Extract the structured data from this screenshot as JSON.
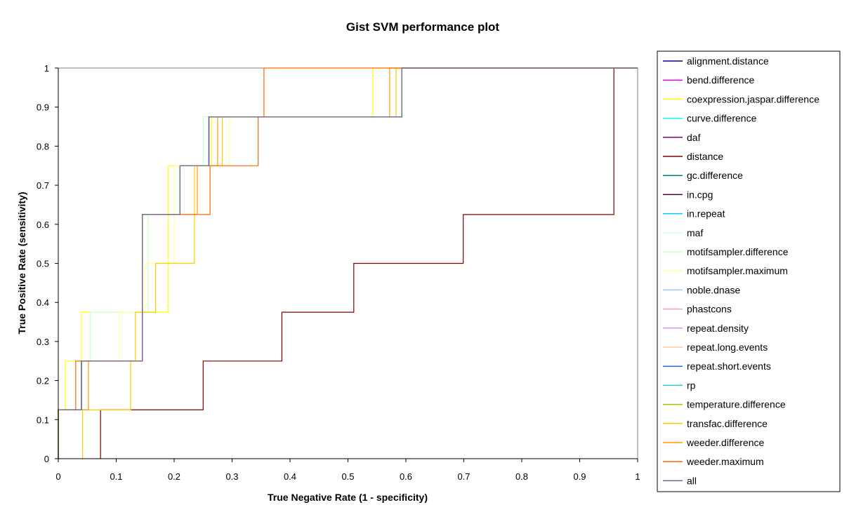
{
  "chart_data": {
    "type": "line",
    "title": "Gist SVM performance plot",
    "xlabel": "True Negative Rate (1 - specificity)",
    "ylabel": "True Positive Rate (sensitivity)",
    "xlim": [
      0,
      1
    ],
    "ylim": [
      0,
      1
    ],
    "x_ticks": [
      "0",
      "0.1",
      "0.2",
      "0.3",
      "0.4",
      "0.5",
      "0.6",
      "0.7",
      "0.8",
      "0.9",
      "1"
    ],
    "y_ticks": [
      "0",
      "0.1",
      "0.2",
      "0.3",
      "0.4",
      "0.5",
      "0.6",
      "0.7",
      "0.8",
      "0.9",
      "1"
    ],
    "grid": false,
    "legend_position": "right",
    "series": [
      {
        "name": "alignment.distance",
        "color": "#000080",
        "x": [
          0,
          0,
          0.04,
          0.04,
          0.145,
          0.145,
          0.21,
          0.21,
          0.26,
          0.26,
          0.593,
          0.593,
          1
        ],
        "y": [
          0,
          0.125,
          0.125,
          0.25,
          0.25,
          0.625,
          0.625,
          0.75,
          0.75,
          0.875,
          0.875,
          1,
          1
        ]
      },
      {
        "name": "bend.difference",
        "color": "#ff00ff",
        "x": [
          0,
          0,
          0.04,
          0.04,
          0.145,
          0.145,
          0.21,
          0.21,
          0.26,
          0.26,
          0.593,
          0.593,
          1
        ],
        "y": [
          0,
          0.125,
          0.125,
          0.25,
          0.25,
          0.625,
          0.625,
          0.75,
          0.75,
          0.875,
          0.875,
          1,
          1
        ]
      },
      {
        "name": "coexpression.jaspar.difference",
        "color": "#ffff00",
        "x": [
          0,
          0,
          0.012,
          0.012,
          0.04,
          0.04,
          0.19,
          0.19,
          0.265,
          0.265,
          0.385,
          0.385,
          0.543,
          0.543,
          1
        ],
        "y": [
          0,
          0.125,
          0.125,
          0.25,
          0.25,
          0.375,
          0.375,
          0.75,
          0.75,
          0.875,
          0.875,
          0.875,
          0.875,
          1,
          1
        ]
      },
      {
        "name": "curve.difference",
        "color": "#00ffff",
        "x": [
          0,
          0,
          0.04,
          0.04,
          0.145,
          0.145,
          0.21,
          0.21,
          0.26,
          0.26,
          0.593,
          0.593,
          1
        ],
        "y": [
          0,
          0.125,
          0.125,
          0.25,
          0.25,
          0.625,
          0.625,
          0.75,
          0.75,
          0.875,
          0.875,
          1,
          1
        ]
      },
      {
        "name": "daf",
        "color": "#800080",
        "x": [
          0,
          0,
          0.04,
          0.04,
          0.145,
          0.145,
          0.21,
          0.21,
          0.26,
          0.26,
          0.593,
          0.593,
          1
        ],
        "y": [
          0,
          0.125,
          0.125,
          0.25,
          0.25,
          0.625,
          0.625,
          0.75,
          0.75,
          0.875,
          0.875,
          1,
          1
        ]
      },
      {
        "name": "distance",
        "color": "#800000",
        "x": [
          0.073,
          0.073,
          0.25,
          0.25,
          0.386,
          0.386,
          0.51,
          0.51,
          0.699,
          0.699,
          0.959,
          0.959,
          1
        ],
        "y": [
          0,
          0.125,
          0.125,
          0.25,
          0.25,
          0.375,
          0.375,
          0.5,
          0.5,
          0.625,
          0.625,
          1,
          1
        ]
      },
      {
        "name": "gc.difference",
        "color": "#008080",
        "x": [
          0,
          0,
          0.04,
          0.04,
          0.145,
          0.145,
          0.21,
          0.21,
          0.26,
          0.26,
          0.593,
          0.593,
          1
        ],
        "y": [
          0,
          0.125,
          0.125,
          0.25,
          0.25,
          0.625,
          0.625,
          0.75,
          0.75,
          0.875,
          0.875,
          1,
          1
        ]
      },
      {
        "name": "in.cpg",
        "color": "#400040",
        "x": [
          0,
          0,
          0.04,
          0.04,
          0.145,
          0.145,
          0.21,
          0.21,
          0.26,
          0.26,
          0.593,
          0.593,
          1
        ],
        "y": [
          0,
          0.125,
          0.125,
          0.25,
          0.25,
          0.625,
          0.625,
          0.75,
          0.75,
          0.875,
          0.875,
          1,
          1
        ]
      },
      {
        "name": "in.repeat",
        "color": "#00ccff",
        "x": [
          0,
          0,
          0.04,
          0.04,
          0.145,
          0.145,
          0.21,
          0.21,
          0.26,
          0.26,
          0.593,
          0.593,
          1
        ],
        "y": [
          0,
          0.125,
          0.125,
          0.25,
          0.25,
          0.625,
          0.625,
          0.75,
          0.75,
          0.875,
          0.875,
          1,
          1
        ]
      },
      {
        "name": "maf",
        "color": "#ccffff",
        "x": [
          0,
          0,
          0.04,
          0.04,
          0.145,
          0.145,
          0.21,
          0.21,
          0.26,
          0.26,
          0.593,
          0.593,
          1
        ],
        "y": [
          0,
          0.125,
          0.125,
          0.25,
          0.25,
          0.625,
          0.625,
          0.75,
          0.75,
          0.875,
          0.875,
          1,
          1
        ]
      },
      {
        "name": "motifsampler.difference",
        "color": "#ccffcc",
        "x": [
          0,
          0,
          0.04,
          0.04,
          0.055,
          0.055,
          0.155,
          0.155,
          0.21,
          0.21,
          0.25,
          0.25,
          0.593,
          0.593,
          1
        ],
        "y": [
          0,
          0.125,
          0.125,
          0.25,
          0.25,
          0.375,
          0.375,
          0.625,
          0.625,
          0.75,
          0.75,
          0.875,
          0.875,
          1,
          1
        ]
      },
      {
        "name": "motifsampler.maximum",
        "color": "#ffff99",
        "x": [
          0,
          0,
          0.04,
          0.04,
          0.105,
          0.105,
          0.15,
          0.15,
          0.2,
          0.2,
          0.295,
          0.295,
          0.593,
          0.593,
          1
        ],
        "y": [
          0,
          0.125,
          0.125,
          0.25,
          0.25,
          0.375,
          0.375,
          0.5,
          0.5,
          0.75,
          0.75,
          0.875,
          0.875,
          1,
          1
        ]
      },
      {
        "name": "noble.dnase",
        "color": "#99ccff",
        "x": [
          0,
          0,
          0.04,
          0.04,
          0.145,
          0.145,
          0.21,
          0.21,
          0.26,
          0.26,
          0.593,
          0.593,
          1
        ],
        "y": [
          0,
          0.125,
          0.125,
          0.25,
          0.25,
          0.625,
          0.625,
          0.75,
          0.75,
          0.875,
          0.875,
          1,
          1
        ]
      },
      {
        "name": "phastcons",
        "color": "#ff99cc",
        "x": [
          0,
          0,
          0.04,
          0.04,
          0.145,
          0.145,
          0.21,
          0.21,
          0.26,
          0.26,
          0.593,
          0.593,
          1
        ],
        "y": [
          0,
          0.125,
          0.125,
          0.25,
          0.25,
          0.625,
          0.625,
          0.75,
          0.75,
          0.875,
          0.875,
          1,
          1
        ]
      },
      {
        "name": "repeat.density",
        "color": "#cc99ff",
        "x": [
          0,
          0,
          0.04,
          0.04,
          0.145,
          0.145,
          0.21,
          0.21,
          0.26,
          0.26,
          0.593,
          0.593,
          1
        ],
        "y": [
          0,
          0.125,
          0.125,
          0.25,
          0.25,
          0.625,
          0.625,
          0.75,
          0.75,
          0.875,
          0.875,
          1,
          1
        ]
      },
      {
        "name": "repeat.long.events",
        "color": "#ffcc99",
        "x": [
          0,
          0,
          0.04,
          0.04,
          0.145,
          0.145,
          0.21,
          0.21,
          0.26,
          0.26,
          0.593,
          0.593,
          1
        ],
        "y": [
          0,
          0.125,
          0.125,
          0.25,
          0.25,
          0.625,
          0.625,
          0.75,
          0.75,
          0.875,
          0.875,
          1,
          1
        ]
      },
      {
        "name": "repeat.short.events",
        "color": "#3366ff",
        "x": [
          0,
          0,
          0.04,
          0.04,
          0.145,
          0.145,
          0.21,
          0.21,
          0.26,
          0.26,
          0.593,
          0.593,
          1
        ],
        "y": [
          0,
          0.125,
          0.125,
          0.25,
          0.25,
          0.625,
          0.625,
          0.75,
          0.75,
          0.875,
          0.875,
          1,
          1
        ]
      },
      {
        "name": "rp",
        "color": "#33cccc",
        "x": [
          0,
          0,
          0.04,
          0.04,
          0.145,
          0.145,
          0.21,
          0.21,
          0.26,
          0.26,
          0.593,
          0.593,
          1
        ],
        "y": [
          0,
          0.125,
          0.125,
          0.25,
          0.25,
          0.625,
          0.625,
          0.75,
          0.75,
          0.875,
          0.875,
          1,
          1
        ]
      },
      {
        "name": "temperature.difference",
        "color": "#99cc00",
        "x": [
          0,
          0,
          0.04,
          0.04,
          0.145,
          0.145,
          0.21,
          0.21,
          0.26,
          0.26,
          0.593,
          0.593,
          1
        ],
        "y": [
          0,
          0.125,
          0.125,
          0.25,
          0.25,
          0.625,
          0.625,
          0.75,
          0.75,
          0.875,
          0.875,
          1,
          1
        ]
      },
      {
        "name": "transfac.difference",
        "color": "#ffcc00",
        "x": [
          0.042,
          0.042,
          0.125,
          0.125,
          0.133,
          0.133,
          0.168,
          0.168,
          0.235,
          0.235,
          0.283,
          0.283,
          0.583,
          0.583,
          1
        ],
        "y": [
          0,
          0.125,
          0.125,
          0.25,
          0.25,
          0.375,
          0.375,
          0.5,
          0.5,
          0.75,
          0.75,
          0.875,
          0.875,
          1,
          1
        ]
      },
      {
        "name": "weeder.difference",
        "color": "#ff9900",
        "x": [
          0,
          0,
          0.052,
          0.052,
          0.145,
          0.145,
          0.178,
          0.178,
          0.24,
          0.24,
          0.275,
          0.275,
          0.572,
          0.572,
          1
        ],
        "y": [
          0,
          0.125,
          0.125,
          0.25,
          0.25,
          0.625,
          0.625,
          0.625,
          0.625,
          0.75,
          0.75,
          0.875,
          0.875,
          1,
          1
        ]
      },
      {
        "name": "weeder.maximum",
        "color": "#ff6600",
        "x": [
          0,
          0,
          0.03,
          0.03,
          0.145,
          0.145,
          0.262,
          0.262,
          0.345,
          0.345,
          0.355,
          0.355,
          1
        ],
        "y": [
          0,
          0.125,
          0.125,
          0.25,
          0.25,
          0.625,
          0.625,
          0.75,
          0.75,
          0.875,
          0.875,
          1,
          1
        ]
      },
      {
        "name": "all",
        "color": "#666699",
        "x": [
          0,
          0,
          0.04,
          0.04,
          0.145,
          0.145,
          0.21,
          0.21,
          0.26,
          0.26,
          0.593,
          0.593,
          1
        ],
        "y": [
          0,
          0.125,
          0.125,
          0.25,
          0.25,
          0.625,
          0.625,
          0.75,
          0.75,
          0.875,
          0.875,
          1,
          1
        ]
      }
    ]
  }
}
